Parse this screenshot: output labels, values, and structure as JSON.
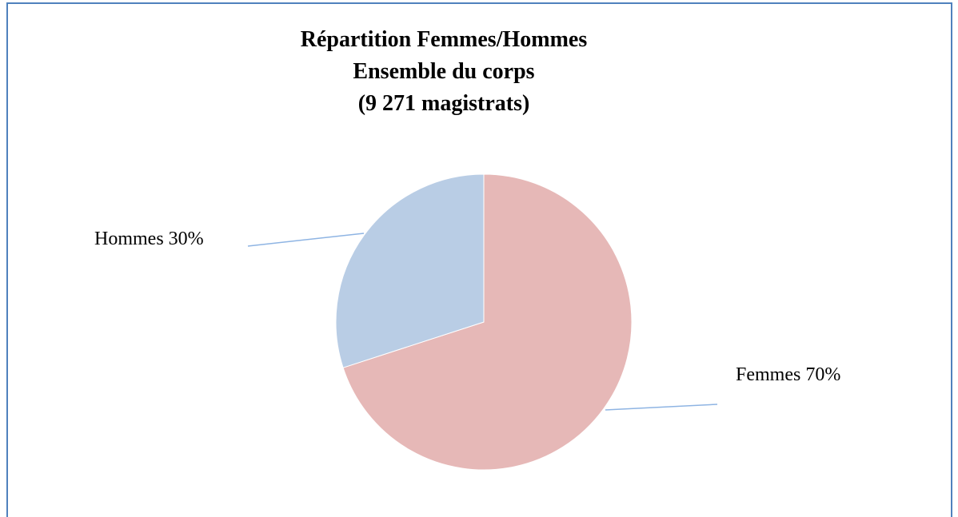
{
  "chart_data": {
    "type": "pie",
    "title": [
      "Répartition Femmes/Hommes",
      "Ensemble du corps",
      "(9 271 magistrats)"
    ],
    "categories": [
      "Femmes",
      "Hommes"
    ],
    "values": [
      70,
      30
    ],
    "value_labels": [
      "70%",
      "30%"
    ],
    "colors": [
      "#e6b8b7",
      "#b9cde5"
    ]
  }
}
